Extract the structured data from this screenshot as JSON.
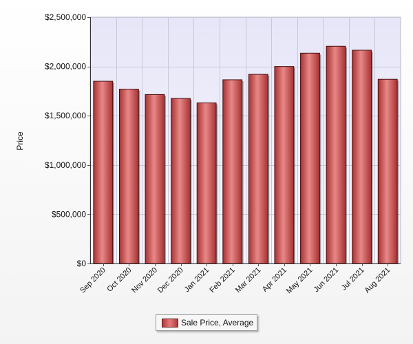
{
  "chart_data": {
    "type": "bar",
    "title": "",
    "xlabel": "",
    "ylabel": "Price",
    "categories": [
      "Sep 2020",
      "Oct 2020",
      "Nov 2020",
      "Dec 2020",
      "Jan 2021",
      "Feb 2021",
      "Mar 2021",
      "Apr 2021",
      "May 2021",
      "Jun 2021",
      "Jul 2021",
      "Aug 2021"
    ],
    "series": [
      {
        "name": "Sale Price, Average",
        "values": [
          1850000,
          1770000,
          1715000,
          1675000,
          1630000,
          1865000,
          1920000,
          2000000,
          2135000,
          2205000,
          2165000,
          1870000
        ]
      }
    ],
    "ylim": [
      0,
      2500000
    ],
    "yticks": [
      0,
      500000,
      1000000,
      1500000,
      2000000,
      2500000
    ],
    "ytick_labels": [
      "$0",
      "$500,000",
      "$1,000,000",
      "$1,500,000",
      "$2,000,000",
      "$2,500,000"
    ],
    "grid": true,
    "legend_position": "bottom-center",
    "colors": {
      "bar_dark": "#a83232",
      "bar_light": "#e88888",
      "bar_edge": "#4a1010",
      "plot_bg_top": "#e6e6f8",
      "plot_bg_bottom": "#f6f6fd",
      "grid": "#c8c8d8"
    }
  }
}
